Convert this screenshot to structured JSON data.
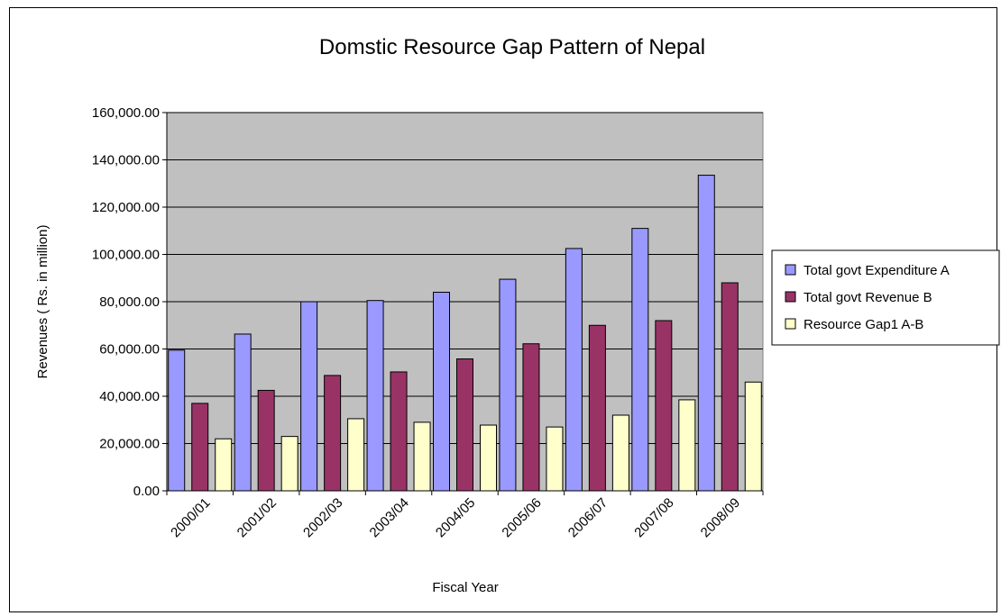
{
  "chart_data": {
    "type": "bar",
    "title": "Domstic Resource Gap Pattern of Nepal",
    "xlabel": "Fiscal Year",
    "ylabel": "Revenues ( Rs. in million)",
    "categories": [
      "2000/01",
      "2001/02",
      "2002/03",
      "2003/04",
      "2004/05",
      "2005/06",
      "2006/07",
      "2007/08",
      "2008/09"
    ],
    "ylim": [
      0,
      160000
    ],
    "yticks": [
      "0.00",
      "20,000.00",
      "40,000.00",
      "60,000.00",
      "80,000.00",
      "100,000.00",
      "120,000.00",
      "140,000.00",
      "160,000.00"
    ],
    "ytick_values": [
      0,
      20000,
      40000,
      60000,
      80000,
      100000,
      120000,
      140000,
      160000
    ],
    "grid": true,
    "legend_position": "right",
    "plot_background": "#c0c0c0",
    "series": [
      {
        "name": "Total govt  Expenditure A",
        "color": "#9999ff",
        "values": [
          59500,
          66300,
          80000,
          80500,
          84000,
          89500,
          102500,
          111000,
          133500
        ]
      },
      {
        "name": "Total govt  Revenue B",
        "color": "#993366",
        "values": [
          37000,
          42500,
          48800,
          50300,
          55800,
          62200,
          70000,
          72000,
          88000
        ]
      },
      {
        "name": "Resource  Gap1 A-B",
        "color": "#ffffcc",
        "values": [
          22000,
          23000,
          30500,
          29000,
          27800,
          27000,
          32000,
          38500,
          46000
        ]
      }
    ]
  }
}
